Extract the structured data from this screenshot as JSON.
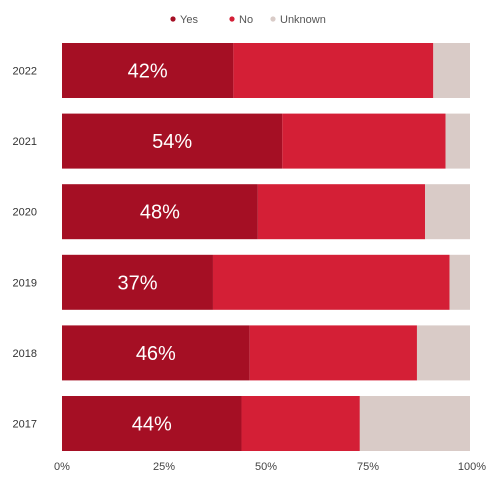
{
  "chart_data": {
    "type": "bar",
    "orientation": "horizontal",
    "stacked": true,
    "categories": [
      "2022",
      "2021",
      "2020",
      "2019",
      "2018",
      "2017"
    ],
    "series": [
      {
        "name": "Yes",
        "values": [
          42,
          54,
          48,
          37,
          46,
          44
        ],
        "color": "#a50f24"
      },
      {
        "name": "No",
        "values": [
          49,
          40,
          41,
          58,
          41,
          29
        ],
        "color": "#d41f36"
      },
      {
        "name": "Unknown",
        "values": [
          9,
          6,
          11,
          5,
          13,
          27
        ],
        "color": "#d9cbc7"
      }
    ],
    "data_labels": [
      "42%",
      "54%",
      "48%",
      "37%",
      "46%",
      "44%"
    ],
    "x_ticks": [
      "0%",
      "25%",
      "50%",
      "75%",
      "100%"
    ],
    "xlim": [
      0,
      100
    ],
    "grid": false,
    "legend_position": "top-center"
  }
}
